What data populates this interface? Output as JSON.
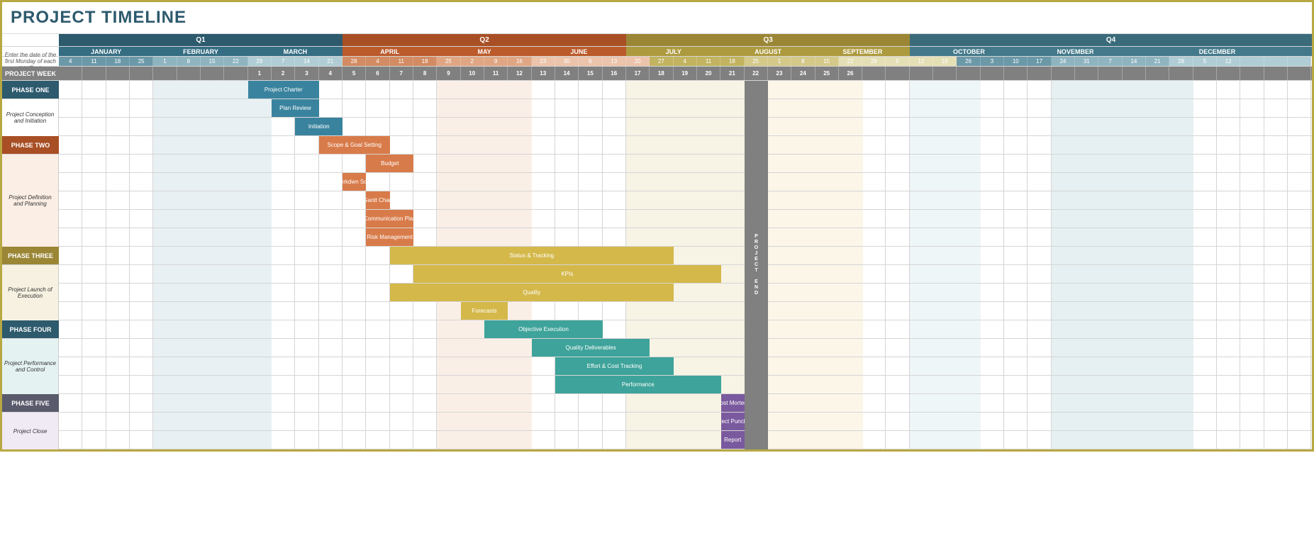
{
  "title": "PROJECT TIMELINE",
  "helperText": "Enter the date of the first Monday of each month -->",
  "projectWeekLabel": "PROJECT WEEK",
  "projectEndLabel": "PROJECT END",
  "totalWeeks": 53,
  "quarters": [
    {
      "label": "Q1",
      "start": 0,
      "span": 12,
      "color": "#2d5a6d"
    },
    {
      "label": "Q2",
      "start": 12,
      "span": 12,
      "color": "#a84f25"
    },
    {
      "label": "Q3",
      "start": 24,
      "span": 12,
      "color": "#9a8635"
    },
    {
      "label": "Q4",
      "start": 36,
      "span": 17,
      "color": "#3a6b7a"
    }
  ],
  "months": [
    {
      "label": "JANUARY",
      "start": 0,
      "span": 4,
      "color": "#356d82"
    },
    {
      "label": "FEBRUARY",
      "start": 4,
      "span": 4,
      "color": "#356d82"
    },
    {
      "label": "MARCH",
      "start": 8,
      "span": 4,
      "color": "#356d82"
    },
    {
      "label": "APRIL",
      "start": 12,
      "span": 4,
      "color": "#bb5a2b"
    },
    {
      "label": "MAY",
      "start": 16,
      "span": 4,
      "color": "#bb5a2b"
    },
    {
      "label": "JUNE",
      "start": 20,
      "span": 4,
      "color": "#bb5a2b"
    },
    {
      "label": "JULY",
      "start": 24,
      "span": 4,
      "color": "#ad9a3e"
    },
    {
      "label": "AUGUST",
      "start": 28,
      "span": 4,
      "color": "#ad9a3e"
    },
    {
      "label": "SEPTEMBER",
      "start": 32,
      "span": 4,
      "color": "#ad9a3e"
    },
    {
      "label": "OCTOBER",
      "start": 36,
      "span": 5,
      "color": "#43798a"
    },
    {
      "label": "NOVEMBER",
      "start": 41,
      "span": 4,
      "color": "#43798a"
    },
    {
      "label": "DECEMBER",
      "start": 45,
      "span": 8,
      "color": "#43798a"
    }
  ],
  "weekDates": [
    {
      "v": "4",
      "c": "#6b99a8"
    },
    {
      "v": "11",
      "c": "#6b99a8"
    },
    {
      "v": "18",
      "c": "#6b99a8"
    },
    {
      "v": "25",
      "c": "#6b99a8"
    },
    {
      "v": "1",
      "c": "#8eb4c0"
    },
    {
      "v": "8",
      "c": "#8eb4c0"
    },
    {
      "v": "15",
      "c": "#8eb4c0"
    },
    {
      "v": "22",
      "c": "#8eb4c0"
    },
    {
      "v": "29",
      "c": "#b0cdd5"
    },
    {
      "v": "7",
      "c": "#b0cdd5"
    },
    {
      "v": "14",
      "c": "#b0cdd5"
    },
    {
      "v": "21",
      "c": "#b0cdd5"
    },
    {
      "v": "28",
      "c": "#d28b62"
    },
    {
      "v": "4",
      "c": "#d28b62"
    },
    {
      "v": "11",
      "c": "#d28b62"
    },
    {
      "v": "18",
      "c": "#d28b62"
    },
    {
      "v": "25",
      "c": "#e0a683"
    },
    {
      "v": "2",
      "c": "#e0a683"
    },
    {
      "v": "9",
      "c": "#e0a683"
    },
    {
      "v": "16",
      "c": "#e0a683"
    },
    {
      "v": "23",
      "c": "#ecc3ab"
    },
    {
      "v": "30",
      "c": "#ecc3ab"
    },
    {
      "v": "6",
      "c": "#ecc3ab"
    },
    {
      "v": "13",
      "c": "#ecc3ab"
    },
    {
      "v": "20",
      "c": "#ecc3ab"
    },
    {
      "v": "27",
      "c": "#c2b360"
    },
    {
      "v": "4",
      "c": "#c2b360"
    },
    {
      "v": "11",
      "c": "#c2b360"
    },
    {
      "v": "18",
      "c": "#c2b360"
    },
    {
      "v": "25",
      "c": "#d4c989"
    },
    {
      "v": "1",
      "c": "#d4c989"
    },
    {
      "v": "8",
      "c": "#d4c989"
    },
    {
      "v": "15",
      "c": "#d4c989"
    },
    {
      "v": "22",
      "c": "#e5dfb5"
    },
    {
      "v": "29",
      "c": "#e5dfb5"
    },
    {
      "v": "5",
      "c": "#e5dfb5"
    },
    {
      "v": "12",
      "c": "#e5dfb5"
    },
    {
      "v": "19",
      "c": "#e5dfb5"
    },
    {
      "v": "26",
      "c": "#6b99a8"
    },
    {
      "v": "3",
      "c": "#6b99a8"
    },
    {
      "v": "10",
      "c": "#6b99a8"
    },
    {
      "v": "17",
      "c": "#6b99a8"
    },
    {
      "v": "24",
      "c": "#8eb4c0"
    },
    {
      "v": "31",
      "c": "#8eb4c0"
    },
    {
      "v": "7",
      "c": "#8eb4c0"
    },
    {
      "v": "14",
      "c": "#8eb4c0"
    },
    {
      "v": "21",
      "c": "#8eb4c0"
    },
    {
      "v": "28",
      "c": "#b0cdd5"
    },
    {
      "v": "5",
      "c": "#b0cdd5"
    },
    {
      "v": "12",
      "c": "#b0cdd5"
    },
    {
      "v": "",
      "c": "#b0cdd5"
    },
    {
      "v": "",
      "c": "#b0cdd5"
    },
    {
      "v": "",
      "c": "#b0cdd5"
    }
  ],
  "projectWeeks": [
    "",
    "",
    "",
    "",
    "",
    "",
    "",
    "",
    "1",
    "2",
    "3",
    "4",
    "5",
    "6",
    "7",
    "8",
    "9",
    "10",
    "11",
    "12",
    "13",
    "14",
    "15",
    "16",
    "17",
    "18",
    "19",
    "20",
    "21",
    "22",
    "23",
    "24",
    "25",
    "26"
  ],
  "projectEndCol": 29,
  "phases": [
    {
      "type": "header",
      "label": "PHASE ONE",
      "color": "#2d5a6d",
      "rows": [
        {
          "label": "Project Charter",
          "start": 8,
          "span": 3,
          "color": "#3a839e"
        }
      ]
    },
    {
      "type": "sub",
      "label": "Project Conception and Initiation",
      "bg": "#ffffff",
      "rows": [
        {
          "label": "Plan Review",
          "start": 9,
          "span": 2,
          "color": "#3a839e"
        },
        {
          "label": "Initiation",
          "start": 10,
          "span": 2,
          "color": "#3a839e"
        }
      ]
    },
    {
      "type": "header",
      "label": "PHASE TWO",
      "color": "#a84f25",
      "rows": [
        {
          "label": "Scope & Goal Setting",
          "start": 11,
          "span": 3,
          "color": "#d87b4a"
        }
      ]
    },
    {
      "type": "sub",
      "label": "Project Definition and Planning",
      "bg": "#fbeee4",
      "rows": [
        {
          "label": "Budget",
          "start": 13,
          "span": 2,
          "color": "#d87b4a"
        },
        {
          "label": "Work Brkdwn Schedule",
          "start": 12,
          "span": 1,
          "color": "#d87b4a"
        },
        {
          "label": "Gantt Chart",
          "start": 13,
          "span": 1,
          "color": "#d87b4a"
        },
        {
          "label": "Communication Plan",
          "start": 13,
          "span": 2,
          "color": "#d87b4a"
        },
        {
          "label": "Risk Management",
          "start": 13,
          "span": 2,
          "color": "#d87b4a"
        }
      ]
    },
    {
      "type": "header",
      "label": "PHASE THREE",
      "color": "#9a8635",
      "rows": [
        {
          "label": "Status & Tracking",
          "start": 14,
          "span": 12,
          "color": "#d4b84a"
        }
      ]
    },
    {
      "type": "sub",
      "label": "Project Launch of Execution",
      "bg": "#f6f1e0",
      "rows": [
        {
          "label": "KPIs",
          "start": 15,
          "span": 13,
          "color": "#d4b84a"
        },
        {
          "label": "Quality",
          "start": 14,
          "span": 12,
          "color": "#d4b84a"
        },
        {
          "label": "Forecasts",
          "start": 17,
          "span": 2,
          "color": "#d4b84a"
        }
      ]
    },
    {
      "type": "header",
      "label": "PHASE FOUR",
      "color": "#2d5a6d",
      "rows": [
        {
          "label": "Objective Execution",
          "start": 18,
          "span": 5,
          "color": "#3ea39a"
        }
      ]
    },
    {
      "type": "sub",
      "label": "Project Performance and Control",
      "bg": "#e4f2f1",
      "rows": [
        {
          "label": "Quality Deliverables",
          "start": 20,
          "span": 5,
          "color": "#3ea39a"
        },
        {
          "label": "Effort & Cost Tracking",
          "start": 21,
          "span": 5,
          "color": "#3ea39a"
        },
        {
          "label": "Performance",
          "start": 21,
          "span": 7,
          "color": "#3ea39a"
        }
      ]
    },
    {
      "type": "header",
      "label": "PHASE FIVE",
      "color": "#5a5a6d",
      "rows": [
        {
          "label": "Post Mortem",
          "start": 28,
          "span": 1,
          "color": "#7a5a9e"
        }
      ]
    },
    {
      "type": "sub",
      "label": "Project Close",
      "bg": "#f0eaf5",
      "rows": [
        {
          "label": "Project Punchlist",
          "start": 28,
          "span": 1,
          "color": "#7a5a9e"
        },
        {
          "label": "Report",
          "start": 28,
          "span": 1,
          "color": "#7a5a9e"
        }
      ]
    }
  ],
  "columnShades": [
    {
      "start": 4,
      "span": 5,
      "color": "#e8f0f3"
    },
    {
      "start": 16,
      "span": 4,
      "color": "#faefe7"
    },
    {
      "start": 24,
      "span": 5,
      "color": "#f7f3e5"
    },
    {
      "start": 30,
      "span": 4,
      "color": "#fbf6e8"
    },
    {
      "start": 36,
      "span": 3,
      "color": "#eff6f8"
    },
    {
      "start": 42,
      "span": 6,
      "color": "#e6f0f2"
    }
  ]
}
